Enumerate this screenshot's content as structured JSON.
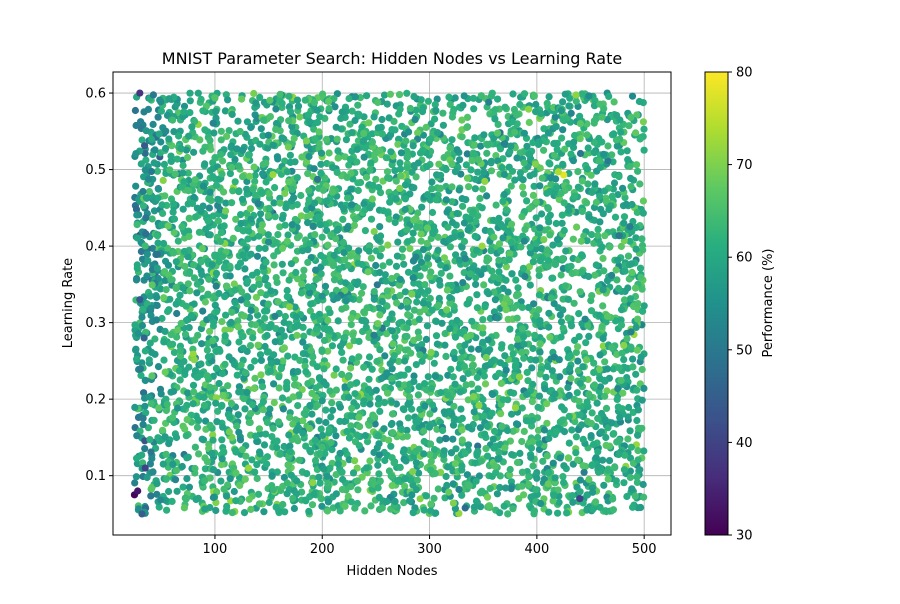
{
  "chart_data": {
    "type": "scatter",
    "title": "MNIST Parameter Search: Hidden Nodes vs Learning Rate",
    "xlabel": "Hidden Nodes",
    "ylabel": "Learning Rate",
    "xlim": [
      5,
      525
    ],
    "ylim": [
      0.0225,
      0.6275
    ],
    "xticks": [
      "100",
      "200",
      "300",
      "400",
      "500"
    ],
    "yticks": [
      "0.1",
      "0.2",
      "0.3",
      "0.4",
      "0.5",
      "0.6"
    ],
    "grid": true,
    "colorbar": {
      "label": "Performance (%)",
      "range": [
        30,
        80
      ],
      "ticks": [
        "30",
        "40",
        "50",
        "60",
        "70",
        "80"
      ],
      "colormap": "viridis"
    },
    "x_range_sampled": [
      25,
      500
    ],
    "y_range_sampled": [
      0.05,
      0.6
    ],
    "performance_typical_range": [
      55,
      68
    ],
    "points": [
      {
        "x": 25,
        "y": 0.075,
        "v": 31
      },
      {
        "x": 28,
        "y": 0.08,
        "v": 33
      },
      {
        "x": 32,
        "y": 0.05,
        "v": 45
      },
      {
        "x": 30,
        "y": 0.6,
        "v": 38
      },
      {
        "x": 35,
        "y": 0.11,
        "v": 40
      },
      {
        "x": 425,
        "y": 0.493,
        "v": 78
      },
      {
        "x": 420,
        "y": 0.497,
        "v": 74
      },
      {
        "x": 440,
        "y": 0.07,
        "v": 40
      },
      {
        "x": 30,
        "y": 0.33,
        "v": 44
      },
      {
        "x": 34,
        "y": 0.28,
        "v": 46
      }
    ],
    "approx_point_count": 5000
  }
}
